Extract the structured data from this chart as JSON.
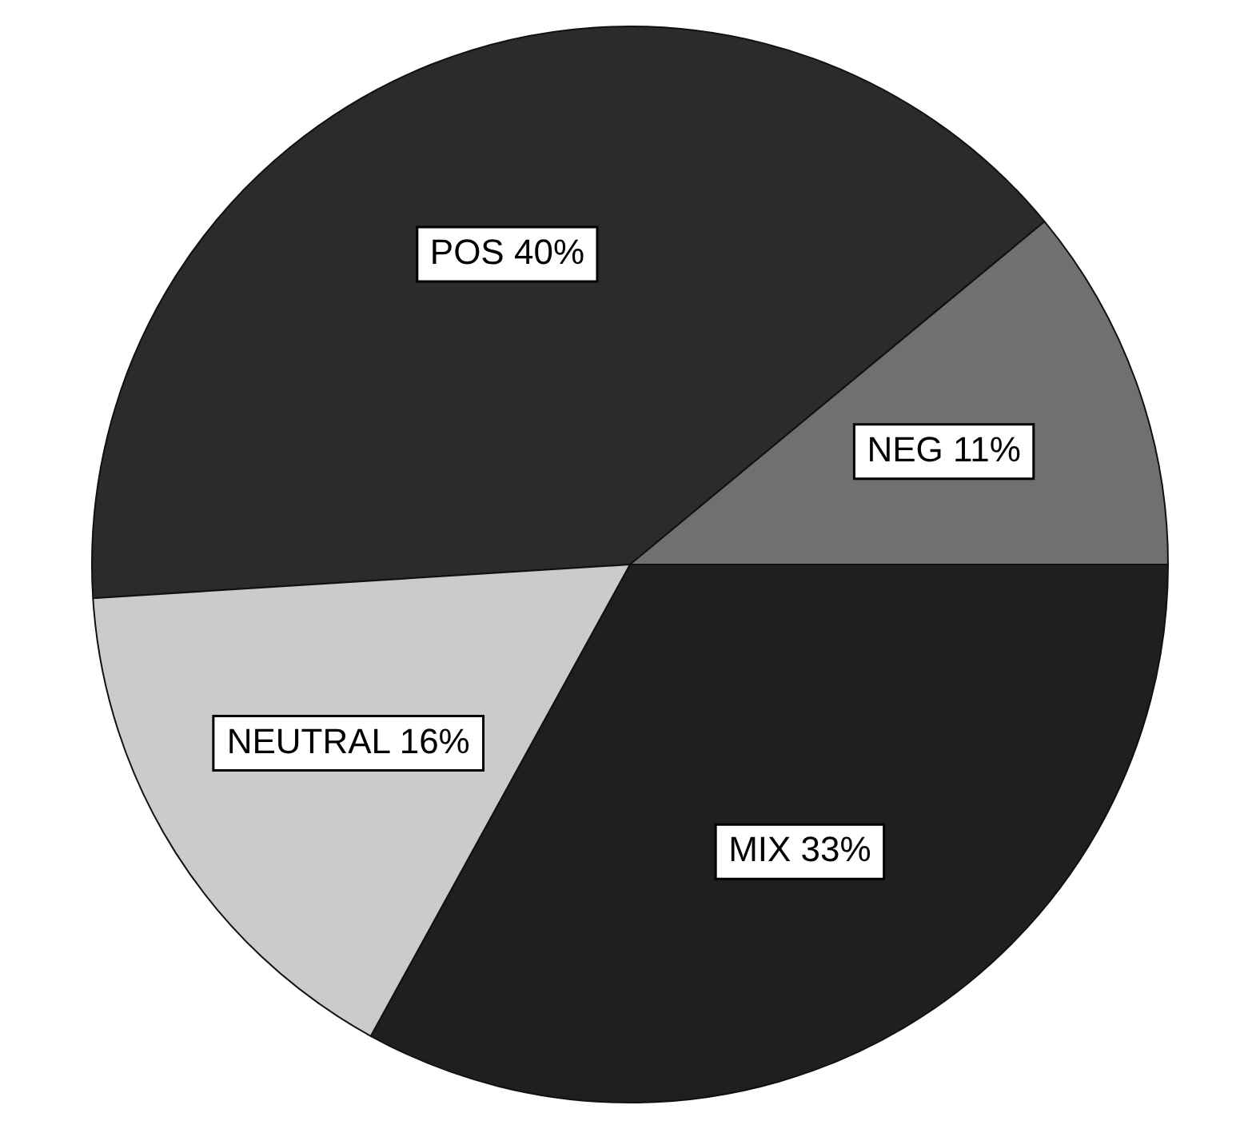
{
  "chart_data": {
    "type": "pie",
    "categories": [
      "POS",
      "NEG",
      "MIX",
      "NEUTRAL"
    ],
    "values": [
      40,
      11,
      33,
      16
    ],
    "value_labels": [
      "40%",
      "11%",
      "33%",
      "16%"
    ],
    "colors": [
      "#2b2b2b",
      "#707070",
      "#1f1f1f",
      "#cbcbcb"
    ],
    "legend": false
  }
}
